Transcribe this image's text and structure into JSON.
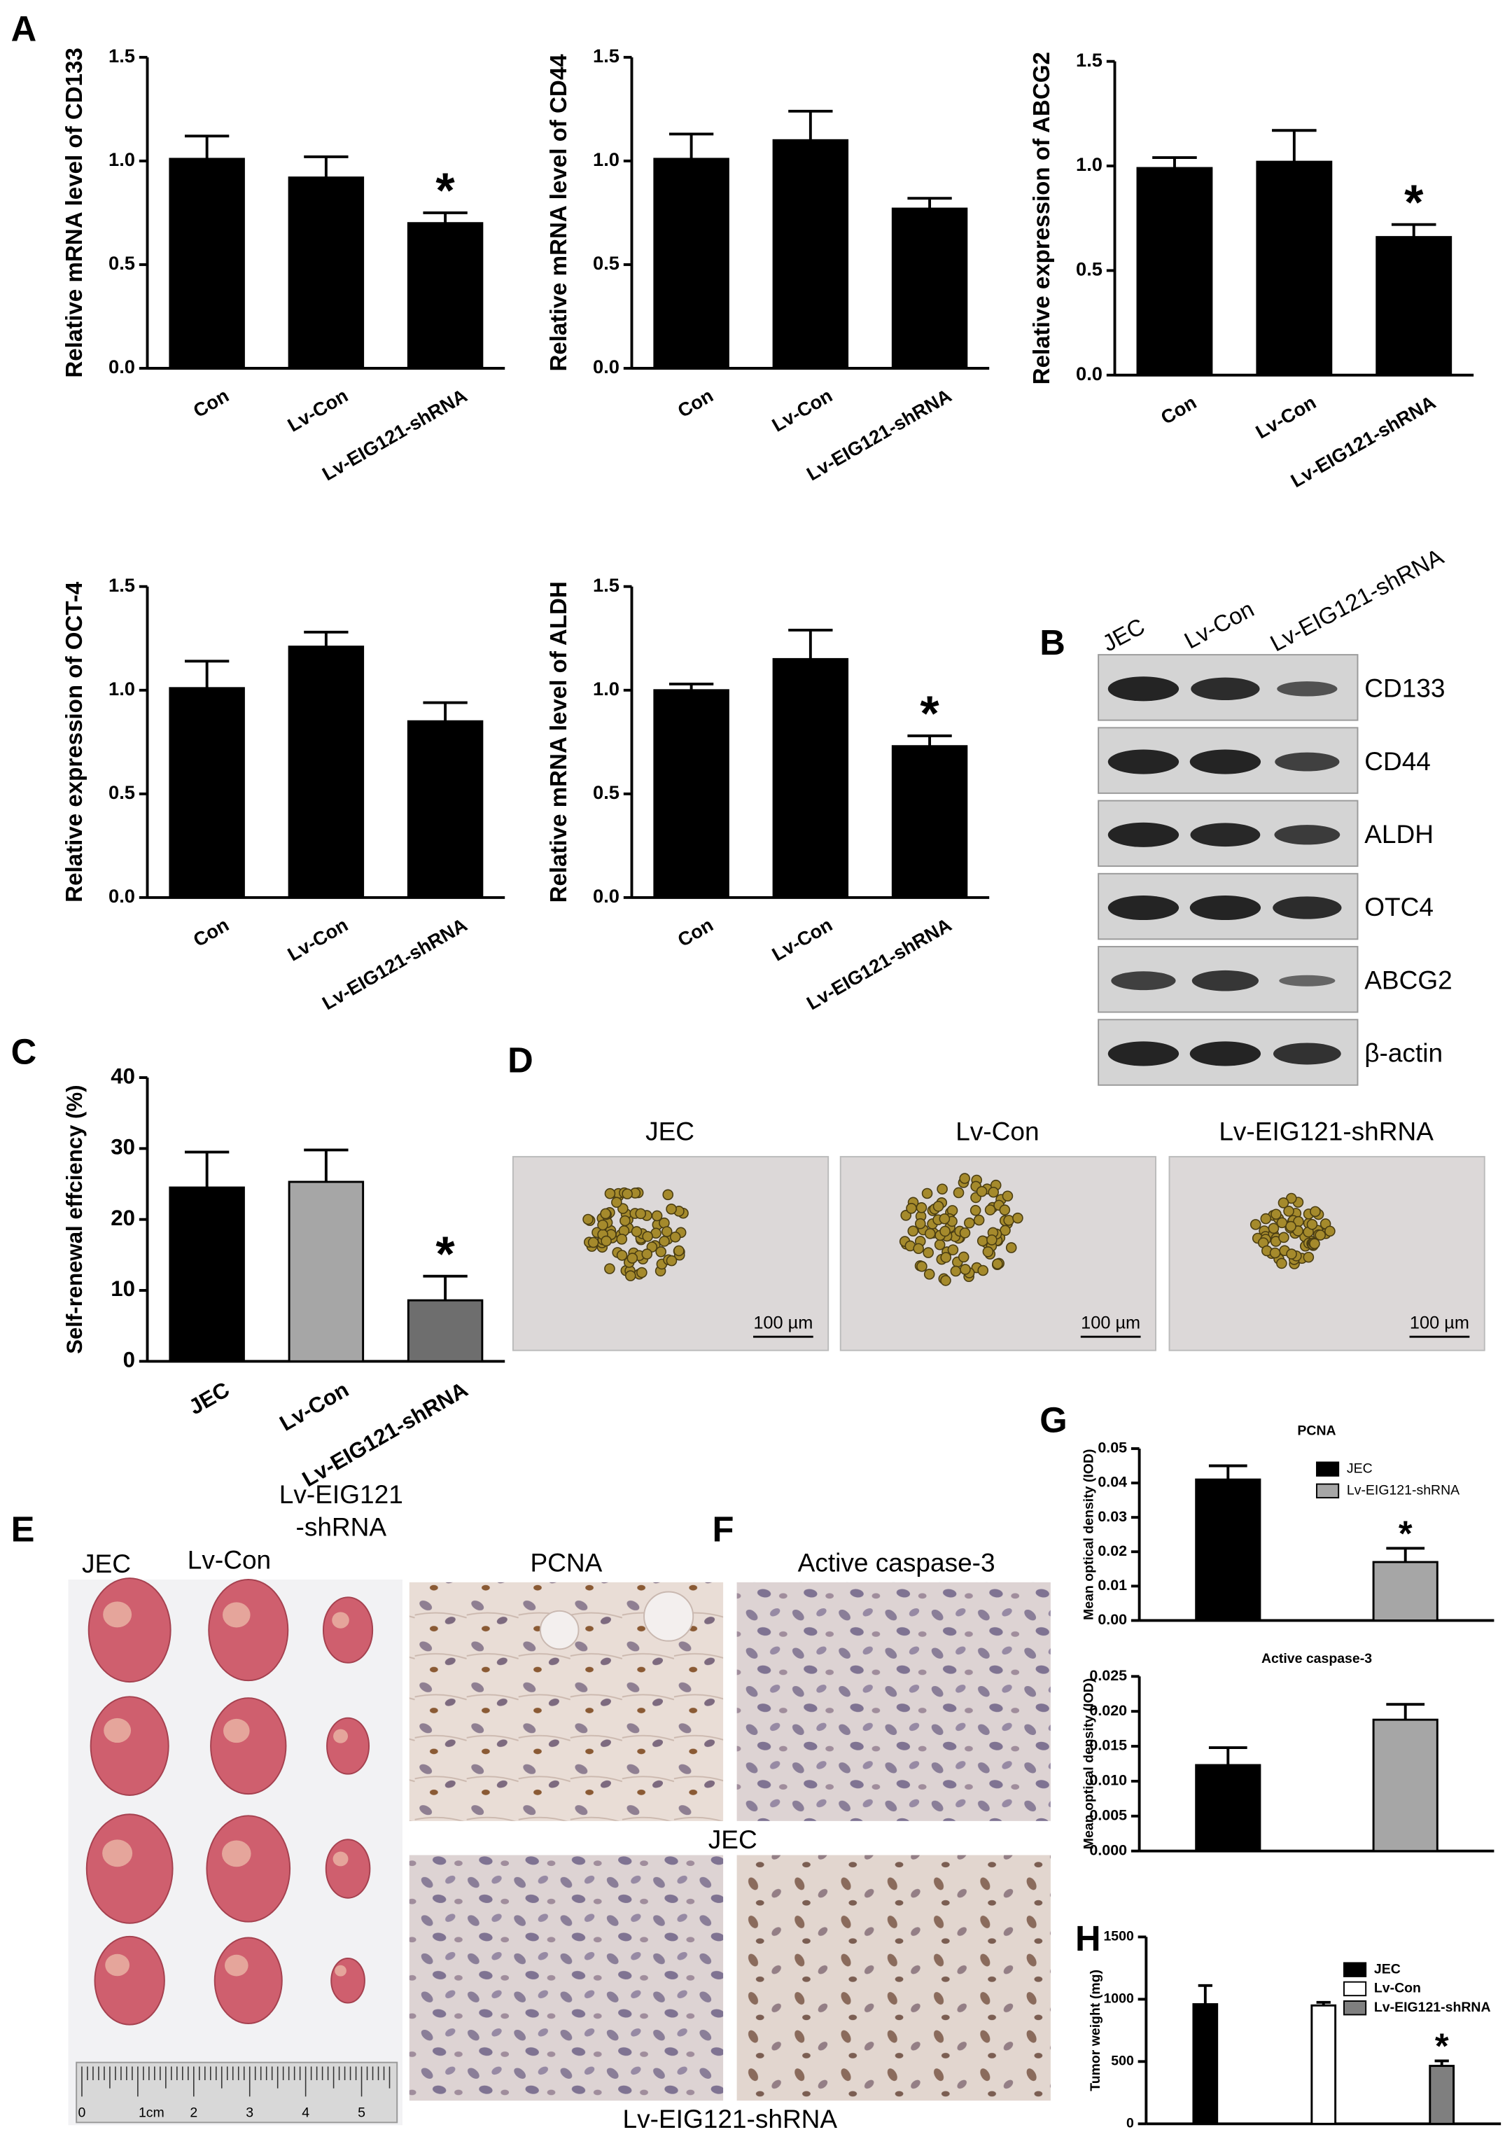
{
  "panels": [
    "A",
    "B",
    "C",
    "D",
    "E",
    "F",
    "G",
    "H"
  ],
  "chart_data": [
    {
      "type": "bar",
      "ylabel": "Relative  mRNA level  of  CD133",
      "categories": [
        "Con",
        "Lv-Con",
        "Lv-EIG121-shRNA"
      ],
      "values": [
        1.01,
        0.92,
        0.7
      ],
      "errors": [
        0.11,
        0.1,
        0.05
      ],
      "colors": [
        "#000000",
        "#000000",
        "#000000"
      ],
      "ylim": [
        0,
        1.5
      ],
      "yticks": [
        {
          "value": 0,
          "label": "0.0"
        },
        0.5,
        {
          "value": 1,
          "label": "1.0"
        },
        1.5
      ],
      "annotation": "*"
    },
    {
      "type": "bar",
      "ylabel": "Relative mRNA level  of  CD44",
      "categories": [
        "Con",
        "Lv-Con",
        "Lv-EIG121-shRNA"
      ],
      "values": [
        1.01,
        1.1,
        0.77
      ],
      "errors": [
        0.12,
        0.14,
        0.05
      ],
      "colors": [
        "#000000",
        "#000000",
        "#000000"
      ],
      "ylim": [
        0,
        1.5
      ],
      "yticks": [
        {
          "value": 0,
          "label": "0.0"
        },
        0.5,
        {
          "value": 1,
          "label": "1.0"
        },
        1.5
      ]
    },
    {
      "type": "bar",
      "ylabel": "Relative  expression  of  ABCG2",
      "categories": [
        "Con",
        "Lv-Con",
        "Lv-EIG121-shRNA"
      ],
      "values": [
        0.99,
        1.02,
        0.66
      ],
      "errors": [
        0.05,
        0.15,
        0.06
      ],
      "colors": [
        "#000000",
        "#000000",
        "#000000"
      ],
      "ylim": [
        0,
        1.5
      ],
      "yticks": [
        {
          "value": 0,
          "label": "0.0"
        },
        0.5,
        {
          "value": 1,
          "label": "1.0"
        },
        1.5
      ],
      "annotation": "*"
    },
    {
      "type": "bar",
      "ylabel": "Relative  expression  of  OCT-4",
      "categories": [
        "Con",
        "Lv-Con",
        "Lv-EIG121-shRNA"
      ],
      "values": [
        1.01,
        1.21,
        0.85
      ],
      "errors": [
        0.13,
        0.07,
        0.09
      ],
      "colors": [
        "#000000",
        "#000000",
        "#000000"
      ],
      "ylim": [
        0,
        1.5
      ],
      "yticks": [
        {
          "value": 0,
          "label": "0.0"
        },
        0.5,
        {
          "value": 1,
          "label": "1.0"
        },
        1.5
      ]
    },
    {
      "type": "bar",
      "ylabel": "Relative  mRNA level  of  ALDH",
      "categories": [
        "Con",
        "Lv-Con",
        "Lv-EIG121-shRNA"
      ],
      "values": [
        1.0,
        1.15,
        0.73
      ],
      "errors": [
        0.03,
        0.14,
        0.05
      ],
      "colors": [
        "#000000",
        "#000000",
        "#000000"
      ],
      "ylim": [
        0,
        1.5
      ],
      "yticks": [
        {
          "value": 0,
          "label": "0.0"
        },
        0.5,
        {
          "value": 1,
          "label": "1.0"
        },
        1.5
      ],
      "annotation": "*"
    },
    {
      "type": "bar",
      "ylabel": "Self-renewal effciency (%)",
      "categories": [
        "JEC",
        "Lv-Con",
        "Lv-EIG121-shRNA"
      ],
      "values": [
        24.5,
        25.3,
        8.6
      ],
      "errors": [
        5.0,
        4.5,
        3.4
      ],
      "colors": [
        "#000000",
        "#a6a6a6",
        "#6e6e6e"
      ],
      "ylim": [
        0,
        40
      ],
      "yticks": [
        0,
        10,
        20,
        30,
        40
      ],
      "annotation": "*"
    },
    {
      "type": "bar",
      "title": "PCNA",
      "ylabel": "Mean optical density (IOD)",
      "legend": [
        "JEC",
        "Lv-EIG121-shRNA"
      ],
      "values": [
        0.041,
        0.017
      ],
      "errors": [
        0.004,
        0.004
      ],
      "colors": [
        "#000000",
        "#a6a6a6"
      ],
      "ylim": [
        0,
        0.05
      ],
      "yticks": [
        {
          "value": 0,
          "label": "0.00"
        },
        0.01,
        0.02,
        0.03,
        0.04,
        0.05
      ],
      "annotation": "*"
    },
    {
      "type": "bar",
      "title": "Active caspase-3",
      "ylabel": "Mean optical density (IOD)",
      "values": [
        0.0123,
        0.0188
      ],
      "errors": [
        0.0025,
        0.0022
      ],
      "colors": [
        "#000000",
        "#a6a6a6"
      ],
      "ylim": [
        0,
        0.025
      ],
      "yticks": [
        {
          "value": 0,
          "label": "0.000"
        },
        0.005,
        {
          "value": 0.01,
          "label": "0.010"
        },
        0.015,
        {
          "value": 0.02,
          "label": "0.020"
        },
        0.025
      ]
    },
    {
      "type": "bar",
      "ylabel": "Tumor weight (mg)",
      "legend": [
        "JEC",
        "Lv-Con",
        "Lv-EIG121-shRNA"
      ],
      "values": [
        960,
        950,
        465
      ],
      "errors": [
        150,
        25,
        40
      ],
      "colors": [
        "#000000",
        "#ffffff",
        "#7f7f7f"
      ],
      "ylim": [
        0,
        1500
      ],
      "yticks": [
        0,
        500,
        1000,
        1500
      ],
      "annotation": "*"
    }
  ],
  "blot": {
    "lanes": [
      "JEC",
      "Lv-Con",
      "Lv-EIG121-shRNA"
    ],
    "rows": [
      "CD133",
      "CD44",
      "ALDH",
      "OTC4",
      "ABCG2",
      "β-actin"
    ]
  },
  "spheres": {
    "groups": [
      "JEC",
      "Lv-Con",
      "Lv-EIG121-shRNA"
    ],
    "scale": "100 µm"
  },
  "tumors": {
    "groups": [
      "JEC",
      "Lv-Con",
      "Lv-EIG121",
      "-shRNA"
    ],
    "ruler": [
      "0",
      "1cm",
      "2",
      "3",
      "4",
      "5"
    ]
  },
  "ihc": {
    "stains": [
      "PCNA",
      "Active caspase-3"
    ],
    "rows": [
      "JEC",
      "Lv-EIG121-shRNA"
    ]
  }
}
